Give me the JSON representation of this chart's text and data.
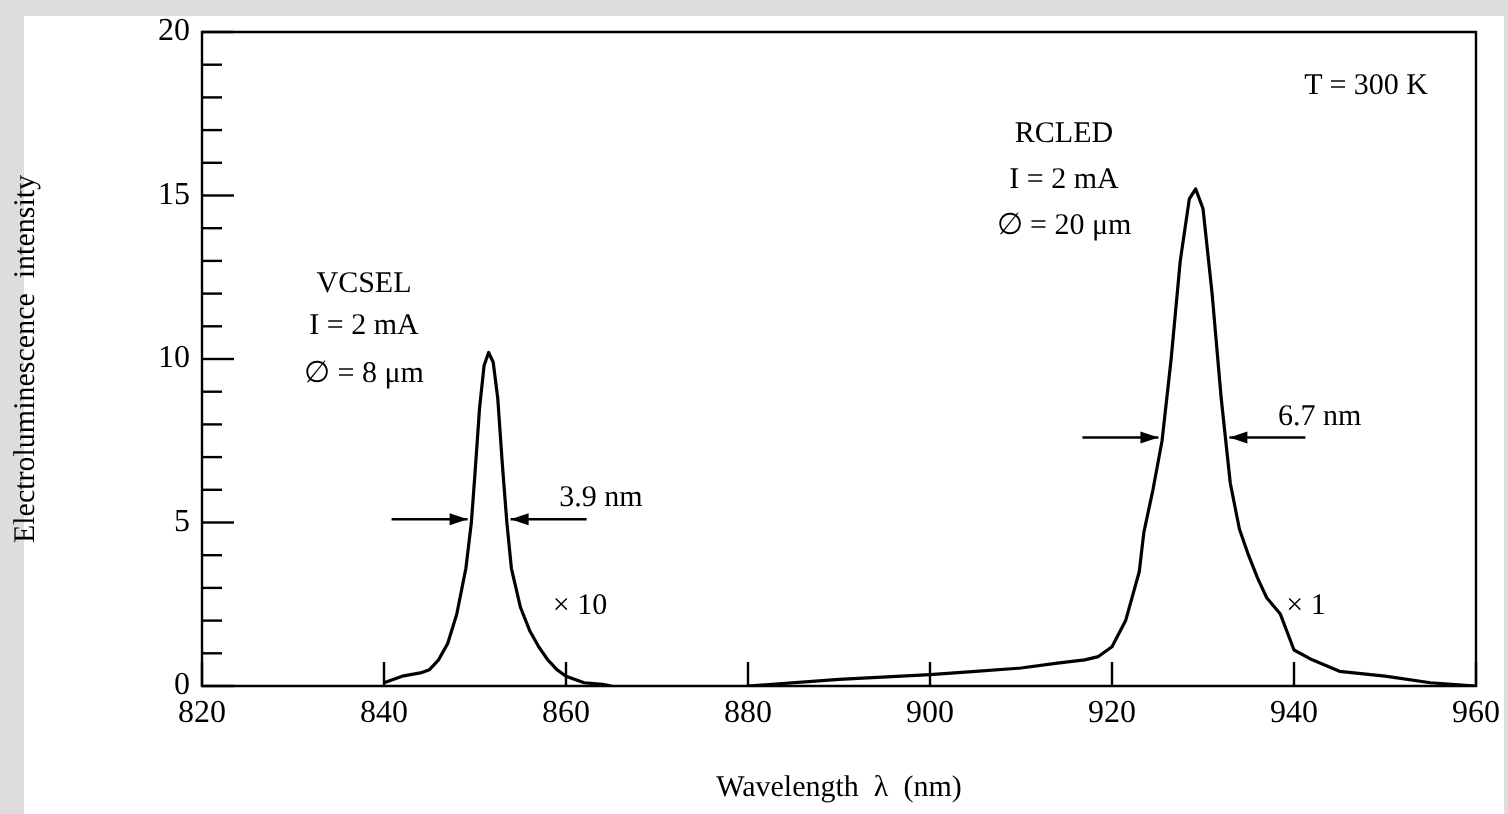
{
  "chart_data": {
    "type": "line",
    "xlabel": "Wavelength  λ  (nm)",
    "ylabel": "Electroluminescence  intensity",
    "xlim": [
      820,
      960
    ],
    "xticks": [
      820,
      840,
      860,
      880,
      900,
      920,
      940,
      960
    ],
    "ylim": [
      0,
      20
    ],
    "yticks": [
      0,
      {
        "value": 1,
        "label": null
      },
      {
        "value": 2,
        "label": null
      },
      {
        "value": 3,
        "label": null
      },
      {
        "value": 4,
        "label": null
      },
      5,
      {
        "value": 6,
        "label": null
      },
      {
        "value": 7,
        "label": null
      },
      {
        "value": 8,
        "label": null
      },
      {
        "value": 9,
        "label": null
      },
      10,
      {
        "value": 11,
        "label": null
      },
      {
        "value": 12,
        "label": null
      },
      {
        "value": 13,
        "label": null
      },
      {
        "value": 14,
        "label": null
      },
      15,
      {
        "value": 16,
        "label": null
      },
      {
        "value": 17,
        "label": null
      },
      {
        "value": 18,
        "label": null
      },
      {
        "value": 19,
        "label": null
      },
      20
    ],
    "grid": false,
    "legend": false,
    "marker": "none",
    "line_style": "solid",
    "series": [
      {
        "color": "#000000",
        "x": [
          840,
          842,
          844,
          845,
          846,
          847,
          848,
          849,
          849.6,
          850,
          850.5,
          851,
          851.5,
          852,
          852.5,
          853,
          853.5,
          854,
          855,
          856,
          857,
          858,
          859,
          860,
          862,
          864,
          865
        ],
        "values": [
          0.1,
          0.3,
          0.4,
          0.5,
          0.8,
          1.3,
          2.2,
          3.6,
          5,
          6.5,
          8.5,
          9.8,
          10.2,
          9.9,
          8.8,
          6.8,
          5,
          3.6,
          2.4,
          1.7,
          1.2,
          0.8,
          0.5,
          0.3,
          0.1,
          0.05,
          0
        ]
      },
      {
        "color": "#000000",
        "x": [
          880,
          890,
          900,
          905,
          910,
          914,
          917,
          918.5,
          920,
          921.5,
          923,
          923.5,
          924.5,
          925.5,
          926.5,
          927.5,
          928.5,
          929.2,
          930,
          931,
          932,
          932.5,
          933,
          934,
          935,
          936,
          937,
          938.5,
          940,
          942,
          945,
          950,
          955,
          960
        ],
        "values": [
          0,
          0.2,
          0.35,
          0.45,
          0.55,
          0.7,
          0.8,
          0.9,
          1.2,
          2,
          3.5,
          4.7,
          6,
          7.5,
          10,
          13,
          14.9,
          15.2,
          14.6,
          12,
          8.8,
          7.5,
          6.2,
          4.8,
          4,
          3.3,
          2.7,
          2.2,
          1.1,
          0.8,
          0.45,
          0.3,
          0.1,
          0
        ]
      }
    ],
    "annotations": [
      "VCSEL",
      "I = 2 mA",
      "∅ = 8 μm",
      {
        "text": "3.9 nm",
        "x": 853.5,
        "y": 5
      },
      "× 10",
      "RCLED",
      "I = 2 mA",
      "∅ = 20 μm",
      {
        "text": "6.7 nm",
        "x": 932.5,
        "y": 7.5
      },
      "× 1",
      "T = 300 K"
    ]
  }
}
